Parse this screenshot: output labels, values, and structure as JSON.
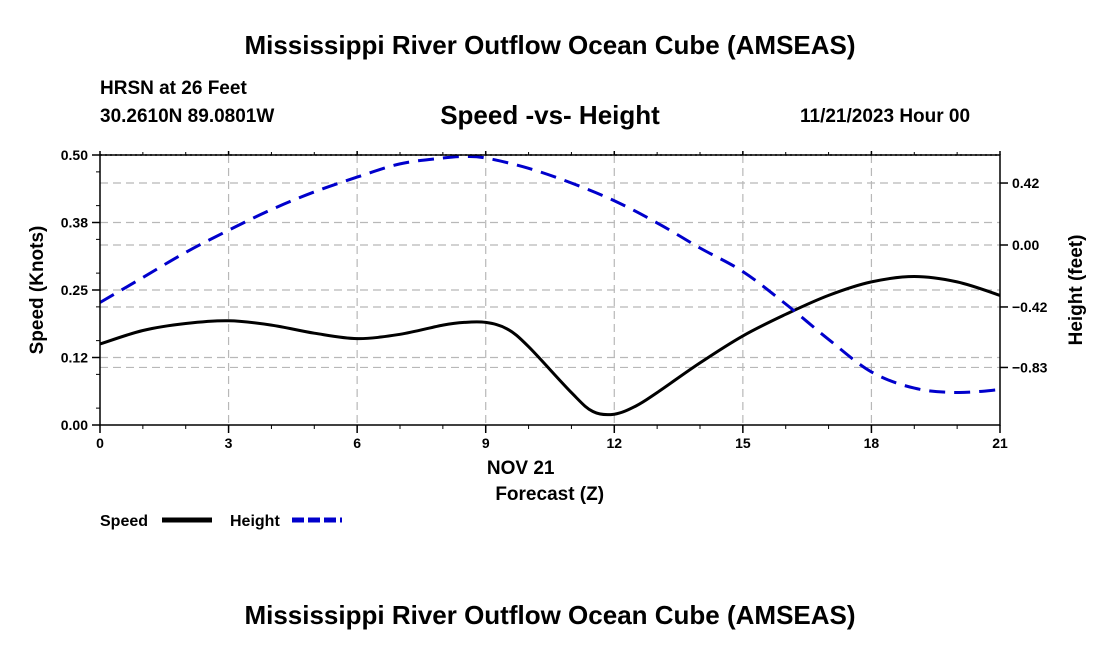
{
  "header": {
    "title": "Mississippi River Outflow Ocean Cube (AMSEAS)",
    "station": "HRSN at 26 Feet",
    "coords": "30.2610N  89.0801W",
    "subtitle": "Speed -vs- Height",
    "datetime": "11/21/2023 Hour 00"
  },
  "footer": {
    "title": "Mississippi River Outflow Ocean Cube (AMSEAS)"
  },
  "chart_data": {
    "type": "line",
    "title": "Speed -vs- Height",
    "xlabel": "Forecast (Z)",
    "xlabel_date": "NOV 21",
    "ylabel": "Speed (Knots)",
    "y2label": "Height (feet)",
    "xlim": [
      0,
      21
    ],
    "ylim": [
      0,
      0.5
    ],
    "y2lim": [
      -1.22,
      0.61
    ],
    "x_ticks": [
      0,
      3,
      6,
      9,
      12,
      15,
      18,
      21
    ],
    "x_tick_labels": [
      "0",
      "3",
      "6",
      "9",
      "12",
      "15",
      "18",
      "21"
    ],
    "y_ticks": [
      0,
      0.125,
      0.25,
      0.375,
      0.5
    ],
    "y_tick_labels": [
      "0.00",
      "0.12",
      "0.25",
      "0.38",
      "0.50"
    ],
    "y2_ticks": [
      0.42,
      0.0,
      -0.42,
      -0.83
    ],
    "y2_tick_labels": [
      "0.42",
      "0.00",
      "−0.42",
      "−0.83"
    ],
    "grid": true,
    "series": [
      {
        "name": "Speed",
        "axis": "left",
        "color": "#000000",
        "dash": "solid",
        "x": [
          0,
          1,
          2,
          3,
          4,
          5,
          6,
          7,
          8,
          8.5,
          9,
          9.5,
          10,
          11,
          11.5,
          12,
          12.5,
          13,
          14,
          15,
          16,
          17,
          18,
          19,
          20,
          21
        ],
        "values": [
          0.15,
          0.175,
          0.188,
          0.193,
          0.185,
          0.17,
          0.16,
          0.168,
          0.185,
          0.19,
          0.19,
          0.178,
          0.145,
          0.06,
          0.025,
          0.02,
          0.035,
          0.06,
          0.115,
          0.165,
          0.205,
          0.24,
          0.265,
          0.275,
          0.265,
          0.24
        ]
      },
      {
        "name": "Height",
        "axis": "right",
        "color": "#0000cc",
        "dash": "dashed",
        "x": [
          0,
          1,
          2,
          3,
          4,
          5,
          6,
          7,
          8,
          8.5,
          9,
          10,
          11,
          12,
          13,
          14,
          15,
          16,
          17,
          18,
          19,
          20,
          21
        ],
        "values": [
          -0.39,
          -0.22,
          -0.05,
          0.1,
          0.24,
          0.36,
          0.46,
          0.55,
          0.59,
          0.6,
          0.59,
          0.52,
          0.42,
          0.3,
          0.15,
          -0.02,
          -0.18,
          -0.4,
          -0.64,
          -0.86,
          -0.97,
          -1.0,
          -0.98
        ]
      }
    ],
    "legend": {
      "position": "bottom-left",
      "entries": [
        "Speed",
        "Height"
      ]
    }
  }
}
